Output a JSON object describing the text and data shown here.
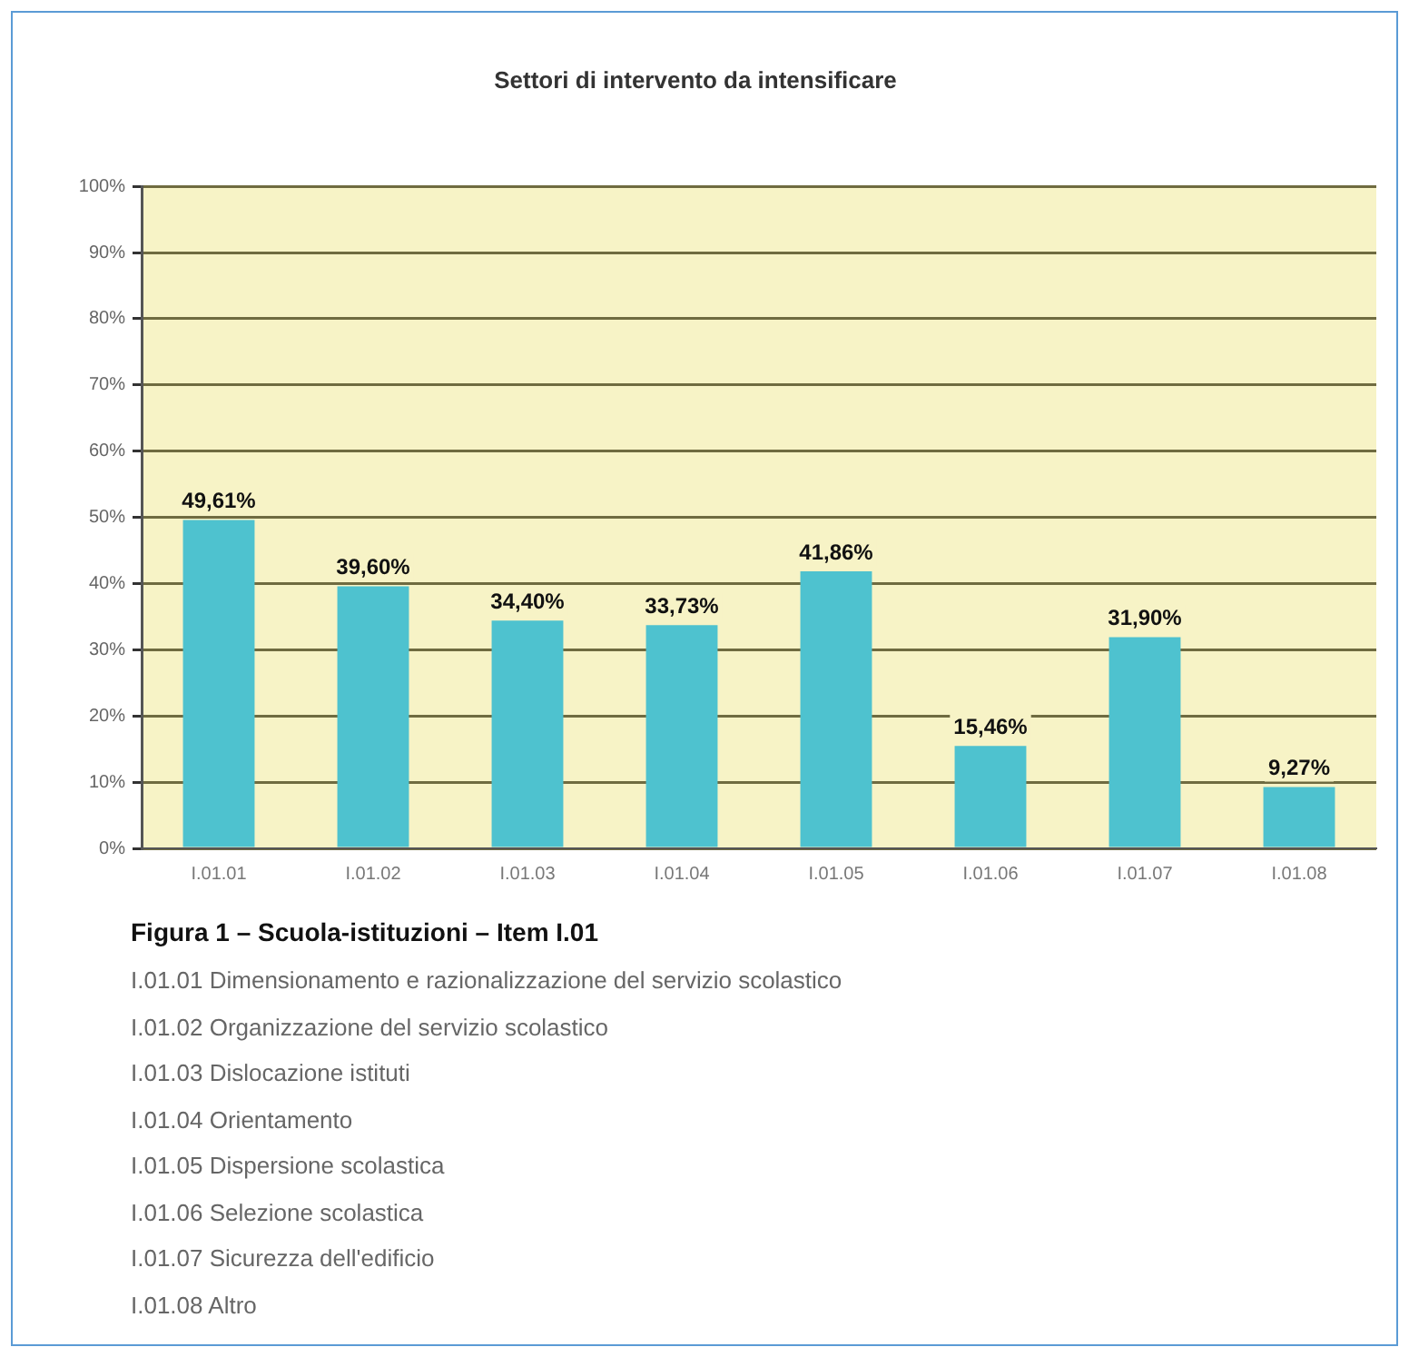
{
  "chart_data": {
    "type": "bar",
    "title": "Settori di intervento da intensificare",
    "categories": [
      "I.01.01",
      "I.01.02",
      "I.01.03",
      "I.01.04",
      "I.01.05",
      "I.01.06",
      "I.01.07",
      "I.01.08"
    ],
    "values": [
      49.61,
      39.6,
      34.4,
      33.73,
      41.86,
      15.46,
      31.9,
      9.27
    ],
    "value_labels": [
      "49,61%",
      "39,60%",
      "34,40%",
      "33,73%",
      "41,86%",
      "15,46%",
      "31,90%",
      "9,27%"
    ],
    "color": "#4ec2cf",
    "ylim": [
      0,
      100
    ],
    "yticks": [
      {
        "value": 0,
        "label": "0%"
      },
      {
        "value": 10,
        "label": "10%"
      },
      {
        "value": 20,
        "label": "20%"
      },
      {
        "value": 30,
        "label": "30%"
      },
      {
        "value": 40,
        "label": "40%"
      },
      {
        "value": 50,
        "label": "50%"
      },
      {
        "value": 60,
        "label": "60%"
      },
      {
        "value": 70,
        "label": "70%"
      },
      {
        "value": 80,
        "label": "80%"
      },
      {
        "value": 90,
        "label": "90%"
      },
      {
        "value": 100,
        "label": "100%"
      }
    ],
    "grid": "y",
    "annotations": [
      "Figura 1 – Scuola-istituzioni – Item I.01",
      "I.01.01 Dimensionamento e razionalizzazione del servizio scolastico",
      "I.01.02 Organizzazione del servizio scolastico",
      "I.01.03 Dislocazione istituti",
      "I.01.04 Orientamento",
      "I.01.05 Dispersione scolastica",
      "I.01.06 Selezione scolastica",
      "I.01.07 Sicurezza dell'edificio",
      "I.01.08 Altro"
    ]
  }
}
